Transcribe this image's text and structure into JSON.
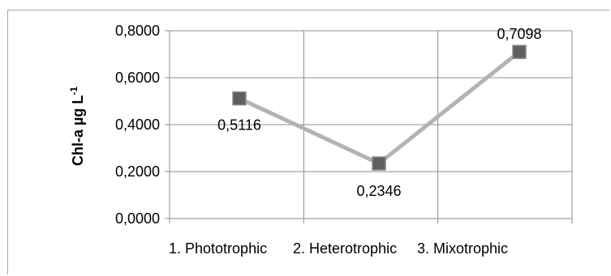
{
  "chart_data": {
    "type": "line",
    "categories": [
      "1. Phototrophic",
      "2. Heterotrophic",
      "3. Mixotrophic"
    ],
    "series": [
      {
        "values": [
          0.5116,
          0.2346,
          0.7098
        ],
        "color": "#b3b3b3",
        "marker_color": "#5f5f5f"
      }
    ],
    "data_labels": [
      "0,5116",
      "0,2346",
      "0,7098"
    ],
    "y_ticks": [
      "0,0000",
      "0,2000",
      "0,4000",
      "0,6000",
      "0,8000"
    ],
    "ylim": [
      0,
      0.8
    ],
    "ylabel_main": "Chl-a µg L",
    "ylabel_sup": "-1",
    "grid": true,
    "gridline_color": "#8c8c8c"
  }
}
